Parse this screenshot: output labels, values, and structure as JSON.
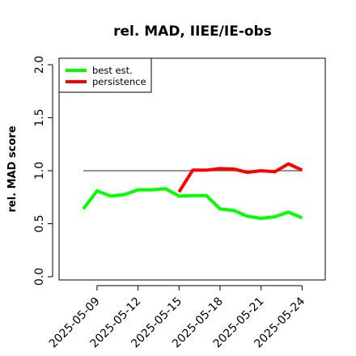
{
  "chart_data": {
    "type": "line",
    "title": "rel. MAD, IIEE/IE-obs",
    "xlabel": "",
    "ylabel": "rel. MAD score",
    "x": [
      "2025-05-08",
      "2025-05-09",
      "2025-05-10",
      "2025-05-11",
      "2025-05-12",
      "2025-05-13",
      "2025-05-14",
      "2025-05-15",
      "2025-05-16",
      "2025-05-17",
      "2025-05-18",
      "2025-05-19",
      "2025-05-20",
      "2025-05-21",
      "2025-05-22",
      "2025-05-23",
      "2025-05-24"
    ],
    "x_tick_labels": [
      "2025-05-09",
      "2025-05-12",
      "2025-05-15",
      "2025-05-18",
      "2025-05-21",
      "2025-05-24"
    ],
    "ylim": [
      0,
      2.0
    ],
    "y_tick_labels": [
      "0.0",
      "0.5",
      "1.0",
      "1.5",
      "2.0"
    ],
    "reference_line": 1.0,
    "grid": false,
    "legend_position": "top-left",
    "series": [
      {
        "name": "best est.",
        "color": "#00ff00",
        "values": [
          0.64,
          0.81,
          0.76,
          0.775,
          0.82,
          0.82,
          0.83,
          0.76,
          0.765,
          0.765,
          0.64,
          0.625,
          0.57,
          0.55,
          0.565,
          0.61,
          0.555
        ]
      },
      {
        "name": "persistence",
        "color": "#ff0000",
        "values": [
          null,
          null,
          null,
          null,
          null,
          null,
          null,
          0.8,
          1.005,
          1.005,
          1.02,
          1.015,
          0.985,
          1.0,
          0.99,
          1.065,
          1.005
        ]
      }
    ]
  }
}
